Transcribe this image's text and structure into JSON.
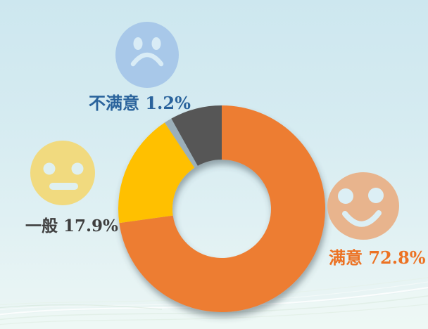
{
  "page": {
    "background_top_color": "#CDE7EF",
    "background_bottom_color": "#ECF6F4"
  },
  "chart_data": {
    "type": "pie",
    "subtype": "donut",
    "direction": "clockwise",
    "start_angle_deg": 0,
    "unit": "%",
    "segments": [
      {
        "label": "满意",
        "value": 72.8,
        "color": "#ED7D31"
      },
      {
        "label": "一般",
        "value": 17.9,
        "color": "#FFC000"
      },
      {
        "label": "不满意",
        "value": 1.2,
        "color": "#9BAFB9"
      },
      {
        "label": "",
        "value": 8.1,
        "color": "#575757"
      }
    ],
    "legend_position": "callout-labels-around-chart"
  },
  "labels": {
    "dissatisfied": {
      "text": "不满意 1.2%",
      "color": "#2A639C"
    },
    "neutral": {
      "text": "一般 17.9%",
      "color": "#3E3E3E"
    },
    "satisfied": {
      "text": "满意 72.8%",
      "color": "#EC7223"
    }
  },
  "icons": {
    "sad_face": {
      "color": "#A8C8E9",
      "feature_color": "#D9ECF6"
    },
    "neutral_face": {
      "color": "#F1DA7F",
      "feature_color": "#DFF0F0"
    },
    "happy_face": {
      "color": "#E8B48D",
      "feature_color": "#DCEFF5"
    }
  }
}
